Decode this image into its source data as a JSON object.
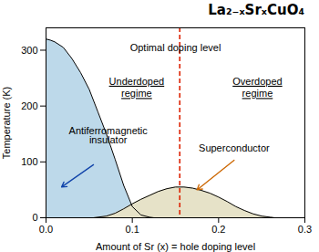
{
  "chart_data": {
    "type": "area",
    "title": "La₂₋ₓSrₓCuO₄",
    "xlabel": "Amount of Sr (x) = hole doping level",
    "ylabel": "Temperature (K)",
    "xlim": [
      0.0,
      0.3
    ],
    "ylim": [
      0,
      340
    ],
    "xticks": [
      {
        "value": 0.0,
        "label": "0.0"
      },
      0.1,
      0.2,
      0.3
    ],
    "yticks": [
      0,
      100,
      200,
      300
    ],
    "series": [
      {
        "x": [
          0.0,
          0.0,
          0.005,
          0.01,
          0.02,
          0.03,
          0.04,
          0.05,
          0.06,
          0.07,
          0.08,
          0.09,
          0.1,
          0.11,
          0.12,
          0.125
        ],
        "values": [
          0,
          320,
          318,
          315,
          305,
          285,
          260,
          230,
          190,
          150,
          105,
          58,
          20,
          5,
          1,
          0
        ],
        "color": "#bdd9ea"
      },
      {
        "x": [
          0.055,
          0.07,
          0.08,
          0.09,
          0.1,
          0.11,
          0.12,
          0.13,
          0.14,
          0.15,
          0.16,
          0.17,
          0.18,
          0.19,
          0.2,
          0.21,
          0.22,
          0.23,
          0.24,
          0.25,
          0.26,
          0.265
        ],
        "values": [
          0,
          3,
          8,
          16,
          25,
          33,
          40,
          47,
          52,
          55,
          55,
          53,
          49,
          44,
          37,
          29,
          20,
          13,
          7,
          3,
          1,
          0
        ],
        "color": "#e6e2c8"
      }
    ],
    "vlines": [
      {
        "x": 0.155,
        "color": "#dd2200",
        "line_style": "dashed"
      }
    ],
    "top_label": "Optimal doping level",
    "regime_labels": [
      {
        "text": "Underdoped",
        "x": 0.105,
        "y": 238
      },
      {
        "text": "regime",
        "x": 0.105,
        "y": 216
      },
      {
        "text": "Overdoped",
        "x": 0.245,
        "y": 238
      },
      {
        "text": "regime",
        "x": 0.245,
        "y": 216
      }
    ],
    "annotations": [
      {
        "text": "Antiferromagnetic",
        "x": 0.072,
        "y": 150
      },
      {
        "text": "insulator",
        "x": 0.072,
        "y": 134
      },
      {
        "text": "Superconductor",
        "x": 0.218,
        "y": 118
      }
    ],
    "arrows": [
      {
        "x1": 0.055,
        "y1": 95,
        "x2": 0.018,
        "y2": 55,
        "color": "#1144aa"
      },
      {
        "x1": 0.218,
        "y1": 103,
        "x2": 0.175,
        "y2": 50,
        "color": "#cc6600"
      }
    ]
  }
}
